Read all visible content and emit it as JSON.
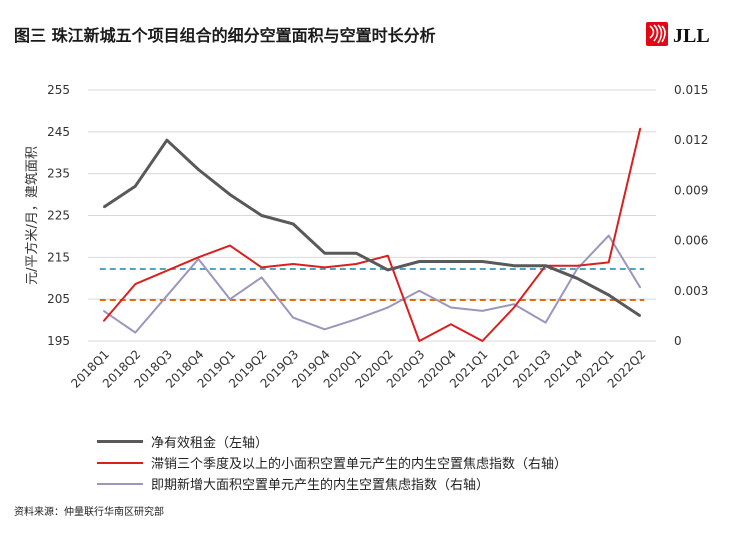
{
  "header": {
    "title": "图三  珠江新城五个项目组合的细分空置面积与空置时长分析",
    "logo_text": "JLL"
  },
  "colors": {
    "rent": "#595959",
    "stagnant": "#d9201f",
    "upcoming": "#9a96bd",
    "avg_stagnant": "#e36c0a",
    "avg_upcoming": "#4aa6c4",
    "logo_red": "#e30613",
    "grid": "#d9d9d9"
  },
  "chart_data": {
    "type": "line",
    "x": [
      "2018Q1",
      "2018Q2",
      "2018Q3",
      "2018Q4",
      "2019Q1",
      "2019Q2",
      "2019Q3",
      "2019Q4",
      "2020Q1",
      "2020Q2",
      "2020Q3",
      "2020Q4",
      "2021Q1",
      "2021Q2",
      "2021Q3",
      "2021Q4",
      "2022Q1",
      "2022Q2"
    ],
    "ylabel": "元/平方米/月，建筑面积",
    "y_left": {
      "range": [
        195,
        255
      ],
      "ticks": [
        "255",
        "245",
        "235",
        "225",
        "215",
        "205",
        "195"
      ]
    },
    "y_right": {
      "range": [
        0,
        0.015
      ],
      "ticks": [
        "0.015",
        "0.012",
        "0.009",
        "0.006",
        "0.003",
        "0"
      ]
    },
    "grid": "horizontal",
    "series": [
      {
        "name": "净有效租金（左轴）",
        "axis": "left",
        "style": "thick",
        "values": [
          227,
          232,
          243,
          236,
          230,
          225,
          223,
          216,
          216,
          212,
          214,
          214,
          214,
          213,
          213,
          210,
          206,
          201
        ]
      },
      {
        "name": "滞销三个季度及以上的小面积空置单元产生的内生空置焦虑指数（右轴）",
        "axis": "right",
        "style": "thin",
        "values": [
          0.0012,
          0.0034,
          0.0042,
          0.005,
          0.0057,
          0.0044,
          0.0046,
          0.0044,
          0.0046,
          0.0051,
          0.0,
          0.001,
          0.0,
          0.002,
          0.0045,
          0.0045,
          0.0047,
          0.0127
        ]
      },
      {
        "name": "即期新增大面积空置单元产生的内生空置焦虑指数（右轴）",
        "axis": "right",
        "style": "thin",
        "values": [
          0.0018,
          0.0005,
          0.0027,
          0.0049,
          0.0025,
          0.0038,
          0.0014,
          0.0007,
          0.0013,
          0.002,
          0.003,
          0.002,
          0.0018,
          0.0022,
          0.0011,
          0.0043,
          0.0063,
          0.0032
        ]
      }
    ],
    "reference_lines": [
      {
        "axis": "left",
        "value": 212.2,
        "color_key": "avg_upcoming",
        "style": "dashed"
      },
      {
        "axis": "left",
        "value": 204.8,
        "color_key": "avg_stagnant",
        "style": "dashed"
      }
    ],
    "legend": {
      "position": "bottom",
      "entries": [
        "净有效租金（左轴）",
        "滞销三个季度及以上的小面积空置单元产生的内生空置焦虑指数（右轴）",
        "即期新增大面积空置单元产生的内生空置焦虑指数（右轴）"
      ]
    }
  },
  "footer": {
    "source": "资料来源：仲量联行华南区研究部"
  }
}
